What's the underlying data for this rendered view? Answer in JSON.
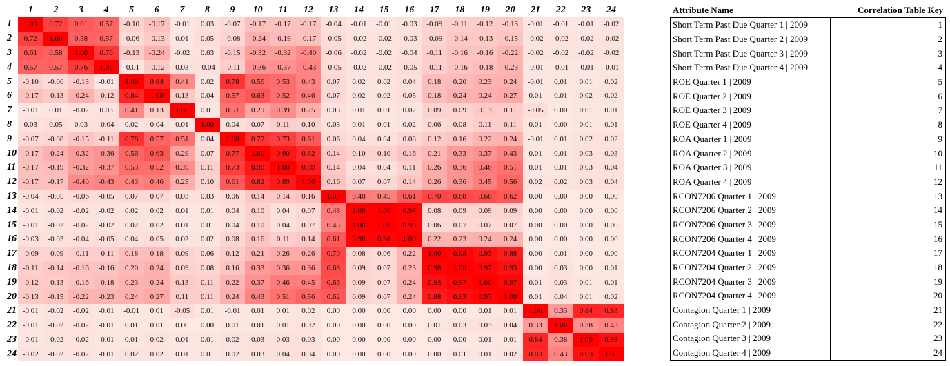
{
  "matrix": {
    "col_headers": [
      "1",
      "2",
      "3",
      "4",
      "5",
      "6",
      "7",
      "8",
      "9",
      "10",
      "11",
      "12",
      "13",
      "14",
      "15",
      "16",
      "17",
      "18",
      "19",
      "20",
      "21",
      "22",
      "23",
      "24"
    ],
    "row_headers": [
      "1",
      "2",
      "3",
      "4",
      "5",
      "6",
      "7",
      "8",
      "9",
      "10",
      "11",
      "12",
      "13",
      "14",
      "15",
      "16",
      "17",
      "18",
      "19",
      "20",
      "21",
      "22",
      "23",
      "24"
    ],
    "rows": [
      [
        "1.00",
        "0.72",
        "0.61",
        "0.57",
        "-0.10",
        "-0.17",
        "-0.01",
        "0.03",
        "-0.07",
        "-0.17",
        "-0.17",
        "-0.17",
        "-0.04",
        "-0.01",
        "-0.01",
        "-0.03",
        "-0.09",
        "-0.11",
        "-0.12",
        "-0.13",
        "-0.01",
        "-0.01",
        "-0.01",
        "-0.02"
      ],
      [
        "0.72",
        "1.00",
        "0.58",
        "0.57",
        "-0.06",
        "-0.13",
        "0.01",
        "0.05",
        "-0.08",
        "-0.24",
        "-0.19",
        "-0.17",
        "-0.05",
        "-0.02",
        "-0.02",
        "-0.03",
        "-0.09",
        "-0.14",
        "-0.13",
        "-0.15",
        "-0.02",
        "-0.02",
        "-0.02",
        "-0.02"
      ],
      [
        "0.61",
        "0.58",
        "1.00",
        "0.76",
        "-0.13",
        "-0.24",
        "-0.02",
        "0.03",
        "-0.15",
        "-0.32",
        "-0.32",
        "-0.40",
        "-0.06",
        "-0.02",
        "-0.02",
        "-0.04",
        "-0.11",
        "-0.16",
        "-0.16",
        "-0.22",
        "-0.02",
        "-0.02",
        "-0.02",
        "-0.02"
      ],
      [
        "0.57",
        "0.57",
        "0.76",
        "1.00",
        "-0.01",
        "-0.12",
        "0.03",
        "-0.04",
        "-0.11",
        "-0.36",
        "-0.37",
        "-0.43",
        "-0.05",
        "-0.02",
        "-0.02",
        "-0.05",
        "-0.11",
        "-0.16",
        "-0.18",
        "-0.23",
        "-0.01",
        "-0.01",
        "-0.01",
        "-0.01"
      ],
      [
        "-0.10",
        "-0.06",
        "-0.13",
        "-0.01",
        "1.00",
        "0.84",
        "0.41",
        "0.02",
        "0.78",
        "0.56",
        "0.53",
        "0.43",
        "0.07",
        "0.02",
        "0.02",
        "0.04",
        "0.18",
        "0.20",
        "0.23",
        "0.24",
        "-0.01",
        "0.01",
        "0.01",
        "0.02"
      ],
      [
        "-0.17",
        "-0.13",
        "-0.24",
        "-0.12",
        "0.84",
        "1.00",
        "0.13",
        "0.04",
        "0.57",
        "0.63",
        "0.52",
        "0.46",
        "0.07",
        "0.02",
        "0.02",
        "0.05",
        "0.18",
        "0.24",
        "0.24",
        "0.27",
        "0.01",
        "0.01",
        "0.02",
        "0.02"
      ],
      [
        "-0.01",
        "0.01",
        "-0.02",
        "0.03",
        "0.41",
        "0.13",
        "1.00",
        "0.01",
        "0.51",
        "0.29",
        "0.39",
        "0.25",
        "0.03",
        "0.01",
        "0.01",
        "0.02",
        "0.09",
        "0.09",
        "0.13",
        "0.11",
        "-0.05",
        "0.00",
        "0.01",
        "0.01"
      ],
      [
        "0.03",
        "0.05",
        "0.03",
        "-0.04",
        "0.02",
        "0.04",
        "0.01",
        "1.00",
        "0.04",
        "0.07",
        "0.11",
        "0.10",
        "0.03",
        "0.01",
        "0.01",
        "0.02",
        "0.06",
        "0.08",
        "0.11",
        "0.11",
        "0.01",
        "0.00",
        "0.01",
        "0.01"
      ],
      [
        "-0.07",
        "-0.08",
        "-0.15",
        "-0.11",
        "0.78",
        "0.57",
        "0.51",
        "0.04",
        "1.00",
        "0.77",
        "0.73",
        "0.61",
        "0.06",
        "0.04",
        "0.04",
        "0.08",
        "0.12",
        "0.16",
        "0.22",
        "0.24",
        "-0.01",
        "0.01",
        "0.02",
        "0.02"
      ],
      [
        "-0.17",
        "-0.24",
        "-0.32",
        "-0.36",
        "0.56",
        "0.63",
        "0.29",
        "0.07",
        "0.77",
        "1.00",
        "0.90",
        "0.82",
        "0.14",
        "0.10",
        "0.10",
        "0.16",
        "0.21",
        "0.33",
        "0.37",
        "0.43",
        "0.01",
        "0.01",
        "0.03",
        "0.03"
      ],
      [
        "-0.17",
        "-0.19",
        "-0.32",
        "-0.37",
        "0.53",
        "0.52",
        "0.39",
        "0.11",
        "0.73",
        "0.90",
        "1.00",
        "0.89",
        "0.14",
        "0.04",
        "0.04",
        "0.11",
        "0.26",
        "0.36",
        "0.46",
        "0.51",
        "0.01",
        "0.01",
        "0.03",
        "0.04"
      ],
      [
        "-0.17",
        "-0.17",
        "-0.40",
        "-0.43",
        "0.43",
        "0.46",
        "0.25",
        "0.10",
        "0.61",
        "0.82",
        "0.89",
        "1.00",
        "0.16",
        "0.07",
        "0.07",
        "0.14",
        "0.26",
        "0.36",
        "0.45",
        "0.56",
        "0.02",
        "0.02",
        "0.03",
        "0.04"
      ],
      [
        "-0.04",
        "-0.05",
        "-0.06",
        "-0.05",
        "0.07",
        "0.07",
        "0.03",
        "0.03",
        "0.06",
        "0.14",
        "0.14",
        "0.16",
        "1.00",
        "0.48",
        "0.45",
        "0.61",
        "0.70",
        "0.68",
        "0.66",
        "0.62",
        "0.00",
        "0.00",
        "0.00",
        "0.00"
      ],
      [
        "-0.01",
        "-0.02",
        "-0.02",
        "-0.02",
        "0.02",
        "0.02",
        "0.01",
        "0.01",
        "0.04",
        "0.10",
        "0.04",
        "0.07",
        "0.48",
        "1.00",
        "1.00",
        "0.98",
        "0.08",
        "0.09",
        "0.09",
        "0.09",
        "0.00",
        "0.00",
        "0.00",
        "0.00"
      ],
      [
        "-0.01",
        "-0.02",
        "-0.02",
        "-0.02",
        "0.02",
        "0.02",
        "0.01",
        "0.01",
        "0.04",
        "0.10",
        "0.04",
        "0.07",
        "0.45",
        "1.00",
        "1.00",
        "0.98",
        "0.06",
        "0.07",
        "0.07",
        "0.07",
        "0.00",
        "0.00",
        "0.00",
        "0.00"
      ],
      [
        "-0.03",
        "-0.03",
        "-0.04",
        "-0.05",
        "0.04",
        "0.05",
        "0.02",
        "0.02",
        "0.08",
        "0.16",
        "0.11",
        "0.14",
        "0.61",
        "0.98",
        "0.98",
        "1.00",
        "0.22",
        "0.23",
        "0.24",
        "0.24",
        "0.00",
        "0.00",
        "0.00",
        "0.00"
      ],
      [
        "-0.09",
        "-0.09",
        "-0.11",
        "-0.11",
        "0.18",
        "0.18",
        "0.09",
        "0.06",
        "0.12",
        "0.21",
        "0.26",
        "0.26",
        "0.70",
        "0.08",
        "0.06",
        "0.22",
        "1.00",
        "0.98",
        "0.93",
        "0.88",
        "0.00",
        "0.01",
        "0.00",
        "0.00"
      ],
      [
        "-0.11",
        "-0.14",
        "-0.16",
        "-0.16",
        "0.20",
        "0.24",
        "0.09",
        "0.08",
        "0.16",
        "0.33",
        "0.36",
        "0.36",
        "0.68",
        "0.09",
        "0.07",
        "0.23",
        "0.98",
        "1.00",
        "0.97",
        "0.93",
        "0.00",
        "0.03",
        "0.00",
        "0.01"
      ],
      [
        "-0.12",
        "-0.13",
        "-0.16",
        "-0.18",
        "0.23",
        "0.24",
        "0.13",
        "0.11",
        "0.22",
        "0.37",
        "0.46",
        "0.45",
        "0.66",
        "0.09",
        "0.07",
        "0.24",
        "0.93",
        "0.97",
        "1.00",
        "0.97",
        "0.01",
        "0.03",
        "0.01",
        "0.01"
      ],
      [
        "-0.13",
        "-0.15",
        "-0.22",
        "-0.23",
        "0.24",
        "0.27",
        "0.11",
        "0.11",
        "0.24",
        "0.43",
        "0.51",
        "0.56",
        "0.62",
        "0.09",
        "0.07",
        "0.24",
        "0.88",
        "0.93",
        "0.97",
        "1.00",
        "0.01",
        "0.04",
        "0.01",
        "0.02"
      ],
      [
        "-0.01",
        "-0.02",
        "-0.02",
        "-0.01",
        "-0.01",
        "0.01",
        "-0.05",
        "0.01",
        "-0.01",
        "0.01",
        "0.01",
        "0.02",
        "0.00",
        "0.00",
        "0.00",
        "0.00",
        "0.00",
        "0.00",
        "0.01",
        "0.01",
        "1.00",
        "0.33",
        "0.84",
        "0.83"
      ],
      [
        "-0.01",
        "-0.02",
        "-0.02",
        "-0.01",
        "0.01",
        "0.01",
        "0.00",
        "0.00",
        "0.01",
        "0.01",
        "0.01",
        "0.02",
        "0.00",
        "0.00",
        "0.00",
        "0.00",
        "0.01",
        "0.03",
        "0.03",
        "0.04",
        "0.33",
        "1.00",
        "0.38",
        "0.43"
      ],
      [
        "-0.01",
        "-0.02",
        "-0.02",
        "-0.01",
        "0.01",
        "0.02",
        "0.01",
        "0.01",
        "0.02",
        "0.03",
        "0.03",
        "0.03",
        "0.00",
        "0.00",
        "0.00",
        "0.00",
        "0.00",
        "0.00",
        "0.01",
        "0.01",
        "0.84",
        "0.38",
        "1.00",
        "0.93"
      ],
      [
        "-0.02",
        "-0.02",
        "-0.02",
        "-0.01",
        "0.02",
        "0.02",
        "0.01",
        "0.01",
        "0.02",
        "0.03",
        "0.04",
        "0.04",
        "0.00",
        "0.00",
        "0.00",
        "0.00",
        "0.00",
        "0.01",
        "0.01",
        "0.02",
        "0.83",
        "0.43",
        "0.93",
        "1.00"
      ]
    ]
  },
  "key": {
    "headers": [
      "Attribute Name",
      "Correlation Table Key"
    ],
    "rows": [
      [
        "Short Term Past Due Quarter 1 | 2009",
        "1"
      ],
      [
        "Short Term Past Due Quarter 2 | 2009",
        "2"
      ],
      [
        "Short Term Past Due Quarter 3 | 2009",
        "3"
      ],
      [
        "Short Term Past Due Quarter 4 | 2009",
        "4"
      ],
      [
        "ROE Quarter 1 | 2009",
        "5"
      ],
      [
        "ROE Quarter 2 | 2009",
        "6"
      ],
      [
        "ROE Quarter 3 | 2009",
        "7"
      ],
      [
        "ROE Quarter 4 | 2009",
        "8"
      ],
      [
        "ROA Quarter 1 | 2009",
        "9"
      ],
      [
        "ROA Quarter 2 | 2009",
        "10"
      ],
      [
        "ROA Quarter 3 | 2009",
        "11"
      ],
      [
        "ROA Quarter 4 | 2009",
        "12"
      ],
      [
        "RCON7206 Quarter 1 | 2009",
        "13"
      ],
      [
        "RCON7206 Quarter 2 | 2009",
        "14"
      ],
      [
        "RCON7206 Quarter 3 | 2009",
        "15"
      ],
      [
        "RCON7206 Quarter 4 | 2009",
        "16"
      ],
      [
        "RCON7204 Quarter 1 | 2009",
        "17"
      ],
      [
        "RCON7204 Quarter 2 | 2009",
        "18"
      ],
      [
        "RCON7204 Quarter 3 | 2009",
        "19"
      ],
      [
        "RCON7204 Quarter 4 | 2009",
        "20"
      ],
      [
        "Contagion Quarter 1 | 2009",
        "21"
      ],
      [
        "Contagion Quarter 2 | 2009",
        "22"
      ],
      [
        "Contagion Quarter 3 | 2009",
        "23"
      ],
      [
        "Contagion Quarter 4 | 2009",
        "24"
      ]
    ]
  }
}
